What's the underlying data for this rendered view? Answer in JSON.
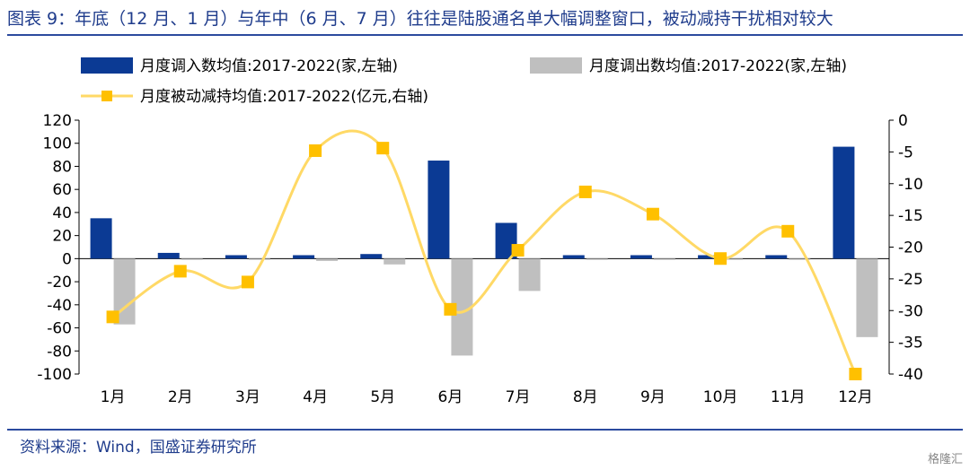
{
  "title": "图表 9：年底（12 月、1 月）与年中（6 月、7 月）往往是陆股通名单大幅调整窗口，被动减持干扰相对较大",
  "source": "资料来源：Wind，国盛证券研究所",
  "watermark": "格隆汇",
  "colors": {
    "in": "#0b3a94",
    "out": "#bfbfbf",
    "line": "#ffd966",
    "marker": "#ffc000",
    "rule": "#2b4a9e"
  },
  "chart_data": {
    "type": "bar",
    "categories": [
      "1月",
      "2月",
      "3月",
      "4月",
      "5月",
      "6月",
      "7月",
      "8月",
      "9月",
      "10月",
      "11月",
      "12月"
    ],
    "series": [
      {
        "name": "月度调入数均值:2017-2022(家,左轴)",
        "type": "bar",
        "axis": "left",
        "values": [
          35,
          5,
          3,
          3,
          4,
          85,
          31,
          3,
          3,
          3,
          3,
          97
        ]
      },
      {
        "name": "月度调出数均值:2017-2022(家,左轴)",
        "type": "bar",
        "axis": "left",
        "values": [
          -57,
          -1,
          -1,
          -2,
          -5,
          -84,
          -28,
          -1,
          -1,
          -1,
          -1,
          -68
        ]
      },
      {
        "name": "月度被动减持均值:2017-2022(亿元,右轴)",
        "type": "line",
        "axis": "right",
        "values": [
          -31,
          -23.8,
          -25.5,
          -4.8,
          -4.4,
          -29.8,
          -20.5,
          -11.3,
          -14.8,
          -21.8,
          -17.5,
          -40
        ]
      }
    ],
    "y_left": {
      "min": -100,
      "max": 120,
      "ticks": [
        120,
        100,
        80,
        60,
        40,
        20,
        0,
        -20,
        -40,
        -60,
        -80,
        -100
      ]
    },
    "y_right": {
      "min": -40,
      "max": 0,
      "ticks": [
        0,
        -5,
        -10,
        -15,
        -20,
        -25,
        -30,
        -35,
        -40
      ]
    },
    "legend": "top",
    "grid": false
  }
}
